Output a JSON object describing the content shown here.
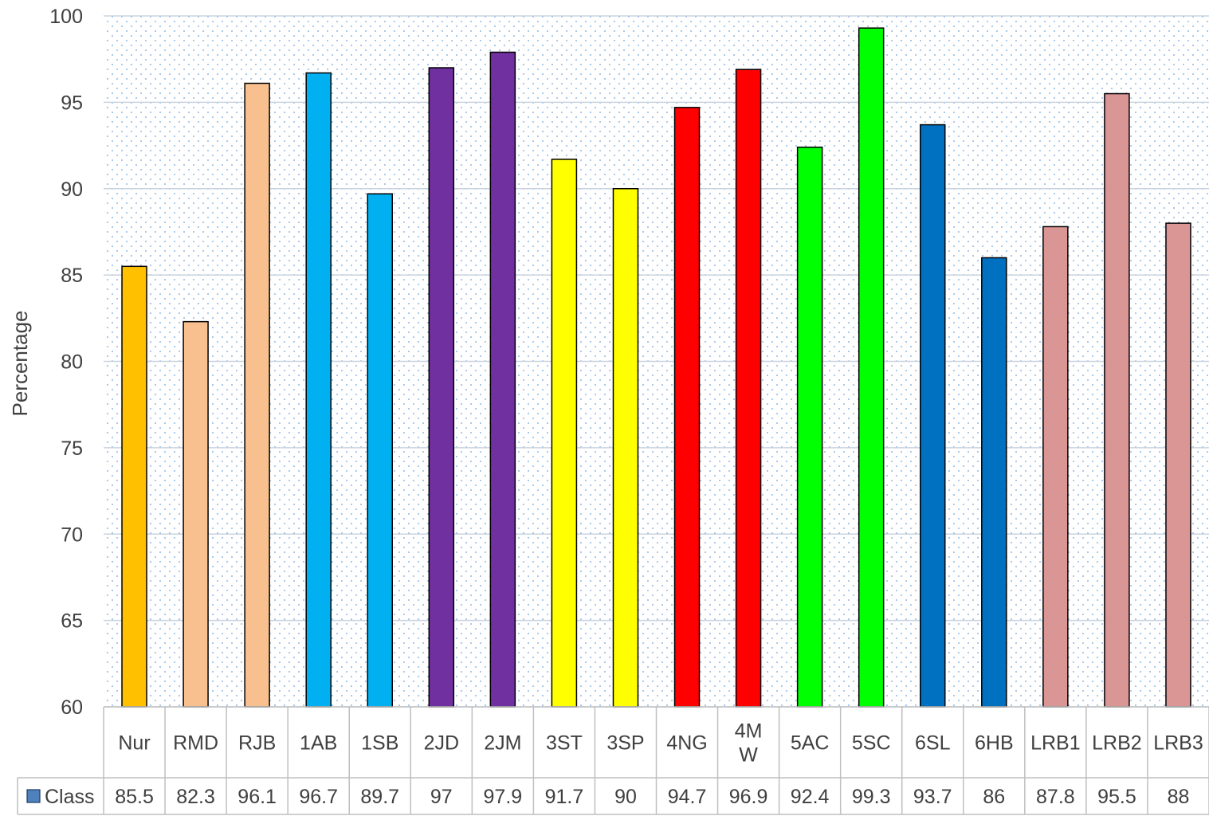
{
  "chart_data": {
    "type": "bar",
    "title": "",
    "xlabel": "",
    "ylabel": "Percentage",
    "ylim": [
      60,
      100
    ],
    "yticks": [
      60,
      65,
      70,
      75,
      80,
      85,
      90,
      95,
      100
    ],
    "grid": true,
    "legend": "data-table",
    "categories": [
      "Nur",
      "RMD",
      "RJB",
      "1AB",
      "1SB",
      "2JD",
      "2JM",
      "3ST",
      "3SP",
      "4NG",
      "4MW",
      "5AC",
      "5SC",
      "6SL",
      "6HB",
      "LRB1",
      "LRB2",
      "LRB3"
    ],
    "category_display": [
      "Nur",
      "RMD",
      "RJB",
      "1AB",
      "1SB",
      "2JD",
      "2JM",
      "3ST",
      "3SP",
      "4NG",
      "4M\nW",
      "5AC",
      "5SC",
      "6SL",
      "6HB",
      "LRB1",
      "LRB2",
      "LRB3"
    ],
    "series": [
      {
        "name": "Class",
        "values": [
          85.5,
          82.3,
          96.1,
          96.7,
          89.7,
          97,
          97.9,
          91.7,
          90,
          94.7,
          96.9,
          92.4,
          99.3,
          93.7,
          86,
          87.8,
          95.5,
          88
        ],
        "legend_color": "#4f81bd"
      }
    ],
    "bar_colors": [
      "#ffc000",
      "#f8c08f",
      "#f8c08f",
      "#00b0f0",
      "#00b0f0",
      "#7030a0",
      "#7030a0",
      "#ffff00",
      "#ffff00",
      "#ff0000",
      "#ff0000",
      "#00ff00",
      "#00ff00",
      "#0070c0",
      "#0070c0",
      "#d99694",
      "#d99694",
      "#d99694"
    ],
    "plot_background": "#dbe8f5",
    "gridline_color": "#c9d3df"
  }
}
